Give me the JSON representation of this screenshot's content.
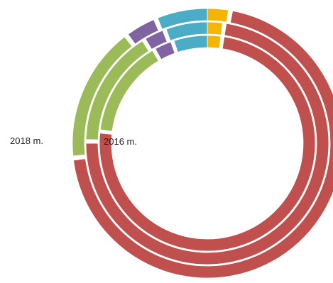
{
  "chart_data": {
    "type": "donut",
    "ring_order": "outer-to-inner",
    "rings": [
      {
        "name": "2018 m.",
        "label_visible": true,
        "values": [
          0.025,
          0.005,
          0.7,
          0.005,
          0.16,
          0.005,
          0.035,
          0.005,
          0.06
        ]
      },
      {
        "name": "",
        "label_visible": false,
        "values": [
          0.02,
          0.005,
          0.725,
          0.005,
          0.155,
          0.005,
          0.025,
          0.005,
          0.055
        ]
      },
      {
        "name": "2016 m.",
        "label_visible": true,
        "values": [
          0.02,
          0.005,
          0.74,
          0.005,
          0.145,
          0.005,
          0.025,
          0.005,
          0.05
        ]
      }
    ],
    "segment_colors": [
      "#f4b400",
      "#ffffff",
      "#c0504d",
      "#ffffff",
      "#9bbb59",
      "#ffffff",
      "#8064a2",
      "#ffffff",
      "#4bacc6"
    ],
    "start_angle_deg": 0,
    "direction": "clockwise",
    "legend": "none",
    "grid": false
  },
  "colors": {
    "background": "#ffffff",
    "separator": "#ffffff"
  }
}
